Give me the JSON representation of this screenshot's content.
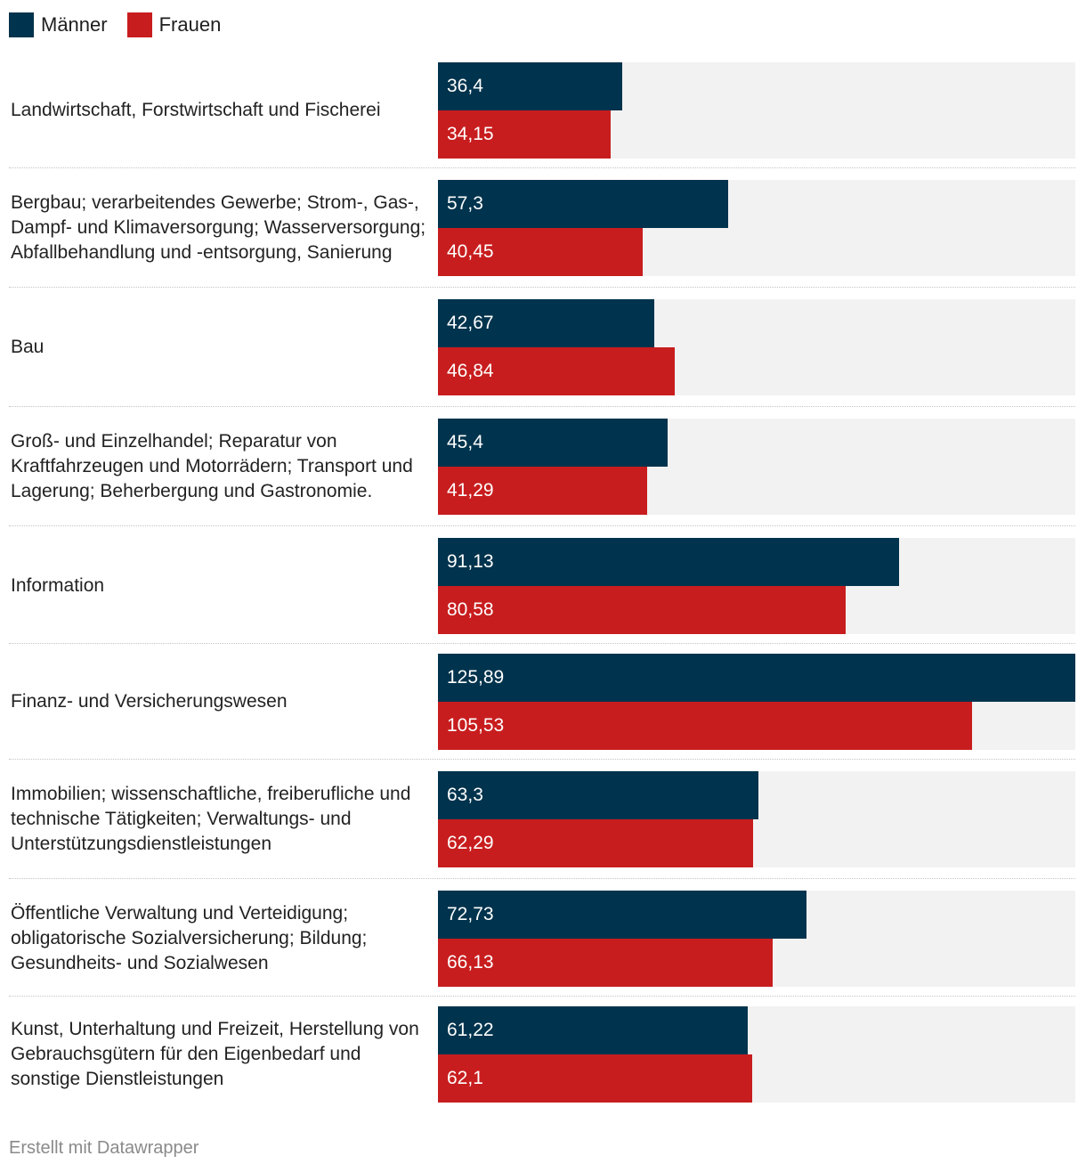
{
  "chart_data": {
    "type": "bar",
    "orientation": "horizontal",
    "title": "",
    "xlabel": "",
    "ylabel": "",
    "xlim": [
      0,
      125.89
    ],
    "grid": false,
    "legend_position": "top-left",
    "categories": [
      "Landwirtschaft, Forstwirtschaft und Fischerei",
      "Bergbau; verarbeitendes Gewerbe; Strom-, Gas-, Dampf- und Klimaversorgung; Wasserversorgung; Abfallbehandlung und -entsorgung, Sanierung",
      "Bau",
      "Groß- und Einzelhandel; Reparatur von Kraftfahrzeugen und Motorrädern; Transport und Lagerung; Beherbergung und Gastronomie.",
      "Information",
      "Finanz- und Versicherungswesen",
      "Immobilien; wissenschaftliche, freiberufliche und technische Tätigkeiten; Verwaltungs- und Unterstützungsdienstleistungen",
      "Öffentliche Verwaltung und Verteidigung; obligatorische Sozialversicherung; Bildung; Gesundheits- und Sozialwesen",
      "Kunst, Unterhaltung und Freizeit, Herstellung von Gebrauchsgütern für den Eigenbedarf und sonstige Dienstleistungen"
    ],
    "series": [
      {
        "name": "Männer",
        "color": "#00334d",
        "values": [
          36.4,
          57.3,
          42.67,
          45.4,
          91.13,
          125.89,
          63.3,
          72.73,
          61.22
        ],
        "labels": [
          "36,4",
          "57,3",
          "42,67",
          "45,4",
          "91,13",
          "125,89",
          "63,3",
          "72,73",
          "61,22"
        ]
      },
      {
        "name": "Frauen",
        "color": "#c81d1e",
        "values": [
          34.15,
          40.45,
          46.84,
          41.29,
          80.58,
          105.53,
          62.29,
          66.13,
          62.1
        ],
        "labels": [
          "34,15",
          "40,45",
          "46,84",
          "41,29",
          "80,58",
          "105,53",
          "62,29",
          "66,13",
          "62,1"
        ]
      }
    ]
  },
  "colors": {
    "track": "#f2f2f2"
  },
  "footer": {
    "credit": "Erstellt mit Datawrapper"
  }
}
